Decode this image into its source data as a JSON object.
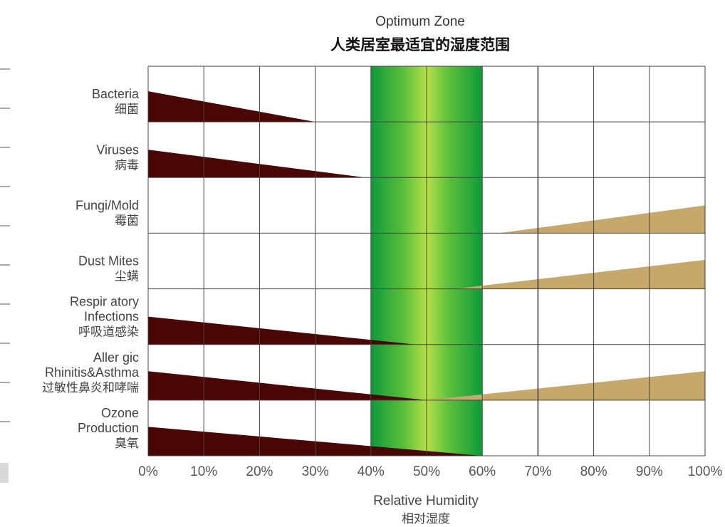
{
  "chart_data": {
    "type": "area",
    "title": "Optimum Zone",
    "subtitle": "人类居室最适宜的湿度范围",
    "xlabel": "Relative Humidity",
    "xlabel_cn": "相对湿度",
    "x_ticks": [
      "0%",
      "10%",
      "20%",
      "30%",
      "40%",
      "50%",
      "60%",
      "70%",
      "80%",
      "90%",
      "100%"
    ],
    "xlim": [
      0,
      100
    ],
    "grid": true,
    "optimum_zone": {
      "from": 40,
      "to": 60,
      "color": "#2fae3a"
    },
    "colors": {
      "low_humidity_risk": "#4a0505",
      "high_humidity_risk": "#c6a86b"
    },
    "rows": [
      {
        "label_lines": [
          "Bacteria",
          "细菌"
        ],
        "low": {
          "from": 0,
          "to": 30,
          "height": 0.55
        },
        "high": null
      },
      {
        "label_lines": [
          "Viruses",
          "病毒"
        ],
        "low": {
          "from": 0,
          "to": 39,
          "height": 0.5
        },
        "high": null
      },
      {
        "label_lines": [
          "Fungi/Mold",
          "霉菌"
        ],
        "low": null,
        "high": {
          "from": 63,
          "to": 100,
          "height": 0.5
        }
      },
      {
        "label_lines": [
          "Dust Mites",
          "尘螨"
        ],
        "low": null,
        "high": {
          "from": 55,
          "to": 100,
          "height": 0.52
        }
      },
      {
        "label_lines": [
          "Respir atory",
          "Infections",
          "呼吸道感染"
        ],
        "low": {
          "from": 0,
          "to": 48,
          "height": 0.5
        },
        "high": null
      },
      {
        "label_lines": [
          "Aller gic",
          "Rhinitis&Asthma",
          "过敏性鼻炎和哮喘"
        ],
        "low": {
          "from": 0,
          "to": 50,
          "height": 0.52
        },
        "high": {
          "from": 50,
          "to": 100,
          "height": 0.52
        }
      },
      {
        "label_lines": [
          "Ozone",
          "Production",
          "臭氧"
        ],
        "low": {
          "from": 0,
          "to": 60,
          "height": 0.52
        },
        "high": null
      }
    ]
  }
}
